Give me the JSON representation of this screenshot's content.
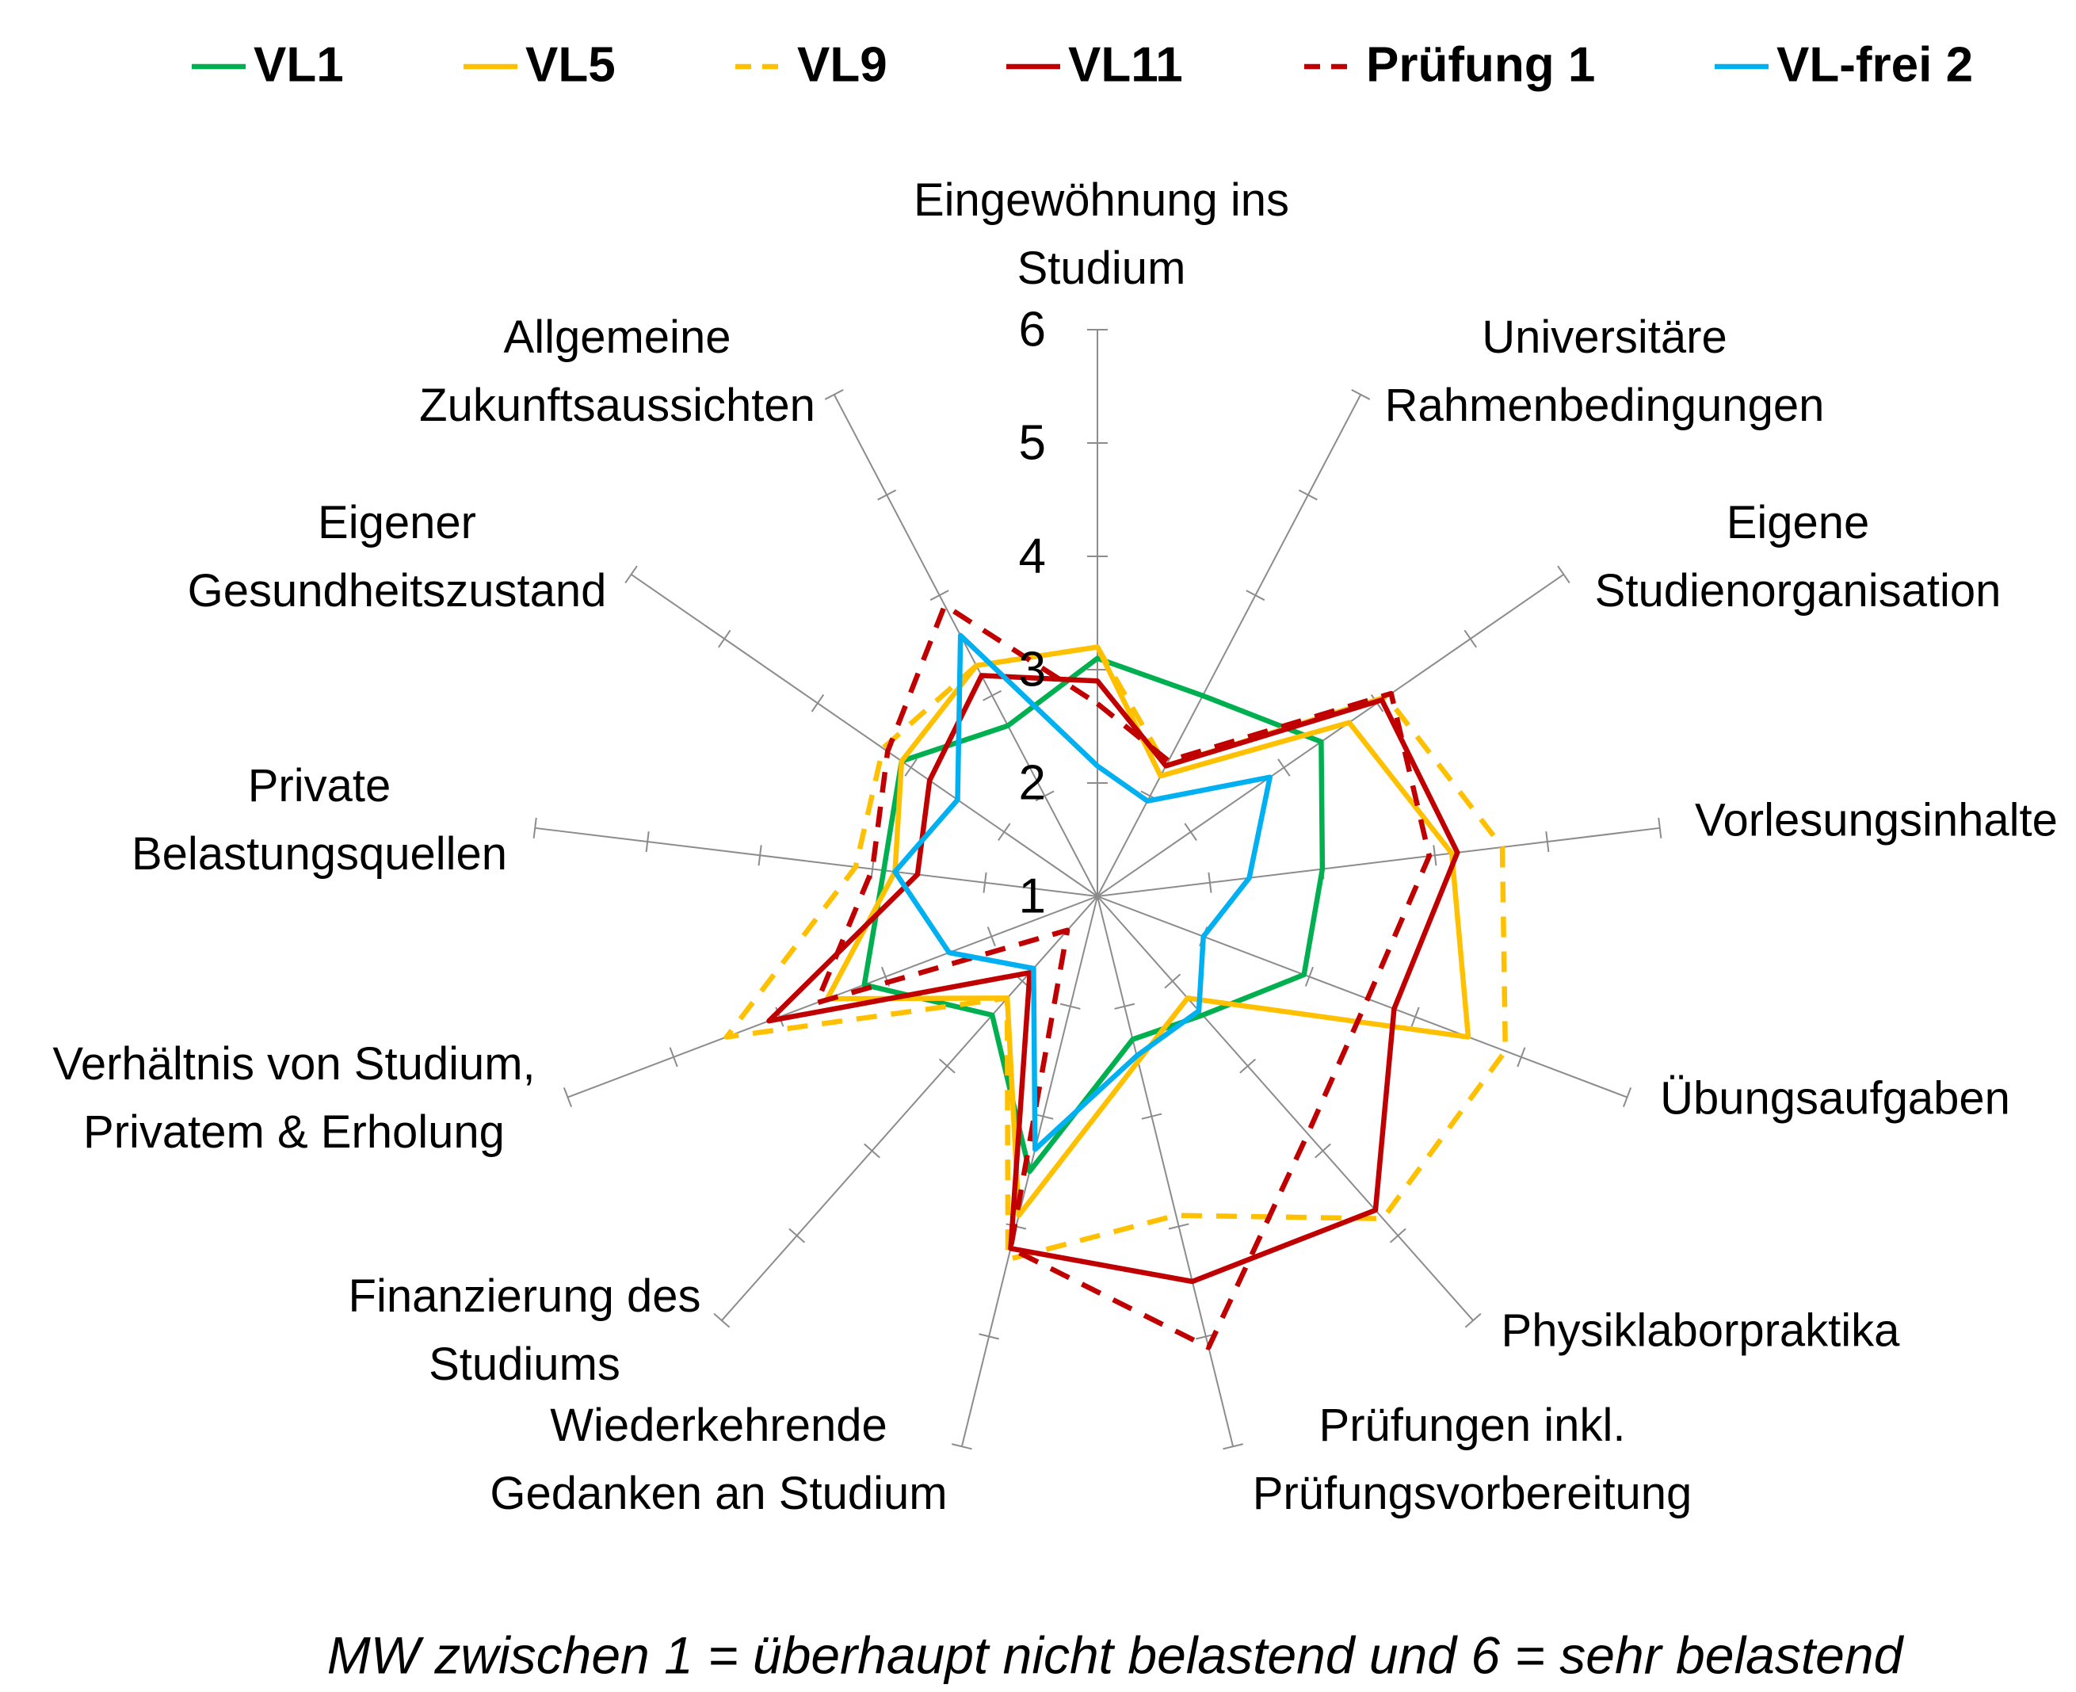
{
  "chart_data": {
    "type": "radar",
    "caption": "MW zwischen 1 = überhaupt nicht belastend und 6 = sehr belastend",
    "categories": [
      "Eingewöhnung ins\nStudium",
      "Universitäre\nRahmenbedingungen",
      "Eigene\nStudienorganisation",
      "Vorlesungsinhalte",
      "Übungsaufgaben",
      "Physiklaborpraktika",
      "Prüfungen inkl.\nPrüfungsvorbereitung",
      "Wiederkehrende\nGedanken an Studium",
      "Finanzierung des\nStudiums",
      "Verhältnis von Studium,\nPrivatem & Erholung",
      "Private\nBelastungsquellen",
      "Eigener\nGesundheitszustand",
      "Allgemeine\nZukunftsaussichten"
    ],
    "rlim": [
      1,
      6
    ],
    "rticks": [
      1,
      2,
      3,
      4,
      5,
      6
    ],
    "series": [
      {
        "name": "VL1",
        "color": "#00b050",
        "dashed": false,
        "values": [
          3.1,
          3.0,
          3.4,
          3.0,
          2.95,
          2.4,
          2.3,
          3.5,
          2.4,
          3.2,
          2.9,
          3.1,
          2.7
        ]
      },
      {
        "name": "VL5",
        "color": "#ffc000",
        "dashed": false,
        "values": [
          3.2,
          2.2,
          3.7,
          4.15,
          4.5,
          2.2,
          2.5,
          3.9,
          2.2,
          3.55,
          2.8,
          3.1,
          3.3
        ]
      },
      {
        "name": "VL9",
        "color": "#ffc000",
        "dashed": true,
        "values": [
          3.2,
          2.3,
          4.1,
          4.6,
          4.85,
          4.8,
          3.9,
          4.3,
          2.2,
          4.5,
          3.15,
          3.3,
          3.3
        ]
      },
      {
        "name": "VL11",
        "color": "#c00000",
        "dashed": false,
        "values": [
          2.9,
          2.3,
          4.05,
          4.2,
          3.8,
          4.7,
          4.5,
          4.2,
          1.9,
          4.1,
          2.6,
          2.8,
          3.2
        ]
      },
      {
        "name": "Prüfung 1",
        "color": "#c00000",
        "dashed": true,
        "values": [
          2.7,
          2.35,
          4.15,
          3.95,
          3.55,
          3.8,
          5.1,
          4.2,
          1.4,
          3.65,
          3.0,
          3.25,
          3.9
        ]
      },
      {
        "name": "VL-frei 2",
        "color": "#00b0f0",
        "dashed": false,
        "values": [
          2.15,
          1.95,
          2.85,
          2.35,
          2.0,
          2.35,
          2.45,
          3.3,
          1.85,
          2.4,
          2.8,
          2.5,
          3.6
        ]
      }
    ]
  }
}
